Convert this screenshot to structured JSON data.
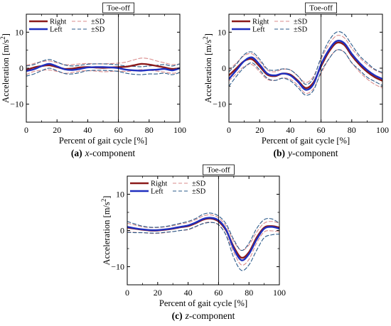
{
  "chart_data": [
    {
      "type": "line",
      "caption_label": "(a)",
      "caption_var": "x",
      "caption_rest": "-component",
      "xlabel": "Percent of gait cycle [%]",
      "ylabel_main": "Acceleration [m/s",
      "ylabel_sup": "2",
      "ylabel_end": "]",
      "xlim": [
        0,
        100
      ],
      "ylim": [
        -15,
        15
      ],
      "xticks": [
        "0",
        "20",
        "40",
        "60",
        "80",
        "100"
      ],
      "yticks": [
        "10",
        "0",
        "−10"
      ],
      "ytick_values": [
        10,
        0,
        -10
      ],
      "marker": {
        "x": 60,
        "label": "Toe-off"
      },
      "legend": {
        "right": "Right",
        "left": "Left",
        "sd1": "±SD",
        "sd2": "±SD"
      },
      "x": [
        0,
        5,
        10,
        15,
        20,
        25,
        30,
        35,
        40,
        45,
        50,
        55,
        60,
        65,
        70,
        75,
        80,
        85,
        90,
        95,
        100
      ],
      "series": [
        {
          "role": "right",
          "color": "#8b1a1a",
          "values": [
            -0.5,
            0.2,
            0.6,
            0.8,
            0.3,
            -0.2,
            -0.1,
            0.2,
            0.3,
            0.2,
            0.1,
            0.2,
            0.3,
            0.4,
            0.8,
            1.2,
            1.0,
            0.6,
            0.2,
            -0.2,
            0.0
          ]
        },
        {
          "role": "left",
          "color": "#1f2fbf",
          "values": [
            -0.8,
            -0.3,
            0.6,
            1.2,
            0.5,
            -0.3,
            -0.5,
            -0.2,
            0.2,
            0.3,
            0.3,
            0.2,
            0.0,
            -0.4,
            -0.6,
            -0.7,
            -0.5,
            -0.4,
            -0.2,
            -0.6,
            0.0
          ]
        },
        {
          "role": "right-sd-upper",
          "color": "#d98b8b",
          "values": [
            0.8,
            1.3,
            1.8,
            2.0,
            1.5,
            1.0,
            1.0,
            1.2,
            1.3,
            1.2,
            1.2,
            1.3,
            1.4,
            1.7,
            2.3,
            2.8,
            2.6,
            2.0,
            1.5,
            1.0,
            1.2
          ]
        },
        {
          "role": "right-sd-lower",
          "color": "#d98b8b",
          "values": [
            -1.8,
            -0.9,
            -0.6,
            -0.5,
            -0.9,
            -1.4,
            -1.2,
            -0.8,
            -0.7,
            -0.8,
            -1.0,
            -0.9,
            -0.8,
            -0.9,
            -0.7,
            -0.4,
            -0.6,
            -0.8,
            -1.1,
            -1.4,
            -1.2
          ]
        },
        {
          "role": "left-sd-upper",
          "color": "#2a5a8a",
          "values": [
            0.6,
            1.0,
            1.9,
            2.4,
            1.7,
            0.9,
            0.6,
            0.8,
            1.1,
            1.2,
            1.2,
            1.1,
            0.9,
            0.6,
            0.5,
            0.4,
            0.6,
            0.8,
            1.0,
            0.6,
            1.2
          ]
        },
        {
          "role": "left-sd-lower",
          "color": "#2a5a8a",
          "values": [
            -2.2,
            -1.6,
            -0.7,
            0.0,
            -0.7,
            -1.5,
            -1.6,
            -1.2,
            -0.7,
            -0.6,
            -0.6,
            -0.7,
            -0.9,
            -1.4,
            -1.7,
            -1.8,
            -1.6,
            -1.6,
            -1.4,
            -1.8,
            -1.2
          ]
        }
      ]
    },
    {
      "type": "line",
      "caption_label": "(b)",
      "caption_var": "y",
      "caption_rest": "-component",
      "xlabel": "Percent of gait cycle [%]",
      "ylabel_main": "Acceleration [m/s",
      "ylabel_sup": "2",
      "ylabel_end": "]",
      "xlim": [
        0,
        100
      ],
      "ylim": [
        -15,
        15
      ],
      "xticks": [
        "0",
        "20",
        "40",
        "60",
        "80",
        "100"
      ],
      "yticks": [
        "10",
        "0",
        "−10"
      ],
      "ytick_values": [
        10,
        0,
        -10
      ],
      "marker": {
        "x": 60,
        "label": "Toe-off"
      },
      "legend": {
        "right": "Right",
        "left": "Left",
        "sd1": "±SD",
        "sd2": "±SD"
      },
      "x": [
        0,
        5,
        10,
        15,
        20,
        25,
        30,
        35,
        40,
        45,
        50,
        55,
        60,
        65,
        70,
        75,
        80,
        85,
        90,
        95,
        100
      ],
      "series": [
        {
          "role": "right",
          "color": "#8b1a1a",
          "values": [
            -2.0,
            0.0,
            2.0,
            2.5,
            0.5,
            -1.8,
            -2.2,
            -1.5,
            -1.8,
            -3.5,
            -5.5,
            -4.0,
            0.5,
            4.5,
            7.0,
            6.5,
            3.5,
            1.0,
            -1.0,
            -2.5,
            -3.5
          ]
        },
        {
          "role": "left",
          "color": "#1f2fbf",
          "values": [
            -3.0,
            -0.5,
            2.0,
            3.0,
            1.0,
            -1.5,
            -2.0,
            -1.5,
            -2.0,
            -3.8,
            -6.0,
            -4.5,
            1.0,
            5.0,
            7.5,
            7.0,
            4.0,
            1.5,
            -0.5,
            -2.0,
            -3.0
          ]
        },
        {
          "role": "right-sd-upper",
          "color": "#d98b8b",
          "values": [
            -0.5,
            1.5,
            3.5,
            4.0,
            2.0,
            -0.5,
            -1.0,
            -0.3,
            -0.5,
            -2.2,
            -4.0,
            -2.3,
            2.5,
            6.5,
            9.0,
            8.5,
            5.5,
            3.0,
            1.0,
            -0.5,
            -1.5
          ]
        },
        {
          "role": "right-sd-lower",
          "color": "#d98b8b",
          "values": [
            -3.5,
            -1.5,
            0.5,
            1.0,
            -1.0,
            -3.1,
            -3.4,
            -2.7,
            -3.1,
            -4.8,
            -7.0,
            -5.7,
            -1.5,
            2.5,
            5.0,
            4.5,
            1.5,
            -1.0,
            -3.0,
            -4.5,
            -5.5
          ]
        },
        {
          "role": "left-sd-upper",
          "color": "#2a5a8a",
          "values": [
            -1.0,
            1.2,
            3.8,
            4.5,
            2.5,
            -0.2,
            -0.6,
            -0.2,
            -0.5,
            -2.2,
            -4.5,
            -2.8,
            3.0,
            7.5,
            10.0,
            9.5,
            6.5,
            3.5,
            1.5,
            -0.3,
            -1.2
          ]
        },
        {
          "role": "left-sd-lower",
          "color": "#2a5a8a",
          "values": [
            -5.0,
            -2.2,
            0.2,
            1.5,
            -0.5,
            -2.8,
            -3.4,
            -2.8,
            -3.5,
            -5.4,
            -7.5,
            -6.2,
            -1.0,
            2.5,
            5.0,
            4.5,
            1.5,
            -0.5,
            -2.5,
            -3.7,
            -4.8
          ]
        }
      ]
    },
    {
      "type": "line",
      "caption_label": "(c)",
      "caption_var": "z",
      "caption_rest": "-component",
      "xlabel": "Percent of gait cycle [%]",
      "ylabel_main": "Acceleration [m/s",
      "ylabel_sup": "2",
      "ylabel_end": "]",
      "xlim": [
        0,
        100
      ],
      "ylim": [
        -15,
        15
      ],
      "xticks": [
        "0",
        "20",
        "40",
        "60",
        "80",
        "100"
      ],
      "yticks": [
        "10",
        "0",
        "−10"
      ],
      "ytick_values": [
        10,
        0,
        -10
      ],
      "marker": {
        "x": 60,
        "label": "Toe-off"
      },
      "legend": {
        "right": "Right",
        "left": "Left",
        "sd1": "±SD",
        "sd2": "±SD"
      },
      "x": [
        0,
        5,
        10,
        15,
        20,
        25,
        30,
        35,
        40,
        45,
        50,
        55,
        60,
        65,
        70,
        75,
        80,
        85,
        90,
        95,
        100
      ],
      "series": [
        {
          "role": "right",
          "color": "#8b1a1a",
          "values": [
            0.8,
            0.5,
            0.2,
            0.0,
            0.0,
            0.2,
            0.5,
            0.9,
            1.2,
            2.0,
            3.0,
            3.3,
            2.5,
            0.0,
            -4.5,
            -7.5,
            -6.0,
            -2.0,
            0.8,
            1.2,
            0.8
          ]
        },
        {
          "role": "left",
          "color": "#1f2fbf",
          "values": [
            1.0,
            0.6,
            0.3,
            0.1,
            0.1,
            0.3,
            0.6,
            1.0,
            1.4,
            2.2,
            3.2,
            3.5,
            2.8,
            0.2,
            -5.0,
            -8.2,
            -6.5,
            -2.5,
            0.5,
            1.0,
            0.5
          ]
        },
        {
          "role": "right-sd-upper",
          "color": "#d98b8b",
          "values": [
            2.0,
            1.5,
            1.0,
            0.8,
            0.8,
            1.0,
            1.3,
            1.8,
            2.2,
            3.0,
            4.0,
            4.3,
            3.5,
            1.2,
            -3.0,
            -5.5,
            -4.0,
            -0.5,
            2.0,
            2.5,
            2.0
          ]
        },
        {
          "role": "right-sd-lower",
          "color": "#d98b8b",
          "values": [
            -0.4,
            -0.5,
            -0.6,
            -0.8,
            -0.8,
            -0.6,
            -0.3,
            0.0,
            0.2,
            1.0,
            2.0,
            2.3,
            1.5,
            -1.2,
            -6.0,
            -9.5,
            -8.0,
            -3.5,
            -0.4,
            -0.1,
            -0.4
          ]
        },
        {
          "role": "left-sd-upper",
          "color": "#2a5a8a",
          "values": [
            2.5,
            1.8,
            1.2,
            0.9,
            0.9,
            1.1,
            1.5,
            2.0,
            2.5,
            3.3,
            4.5,
            4.8,
            4.0,
            1.8,
            -2.5,
            -5.5,
            -3.5,
            0.5,
            3.0,
            3.2,
            2.0
          ]
        },
        {
          "role": "left-sd-lower",
          "color": "#2a5a8a",
          "values": [
            -0.5,
            -0.6,
            -0.6,
            -0.7,
            -0.7,
            -0.5,
            -0.3,
            0.0,
            0.3,
            1.1,
            1.9,
            2.2,
            1.6,
            -1.4,
            -7.5,
            -11.0,
            -9.5,
            -5.5,
            -2.0,
            -1.2,
            -1.0
          ]
        }
      ]
    }
  ]
}
